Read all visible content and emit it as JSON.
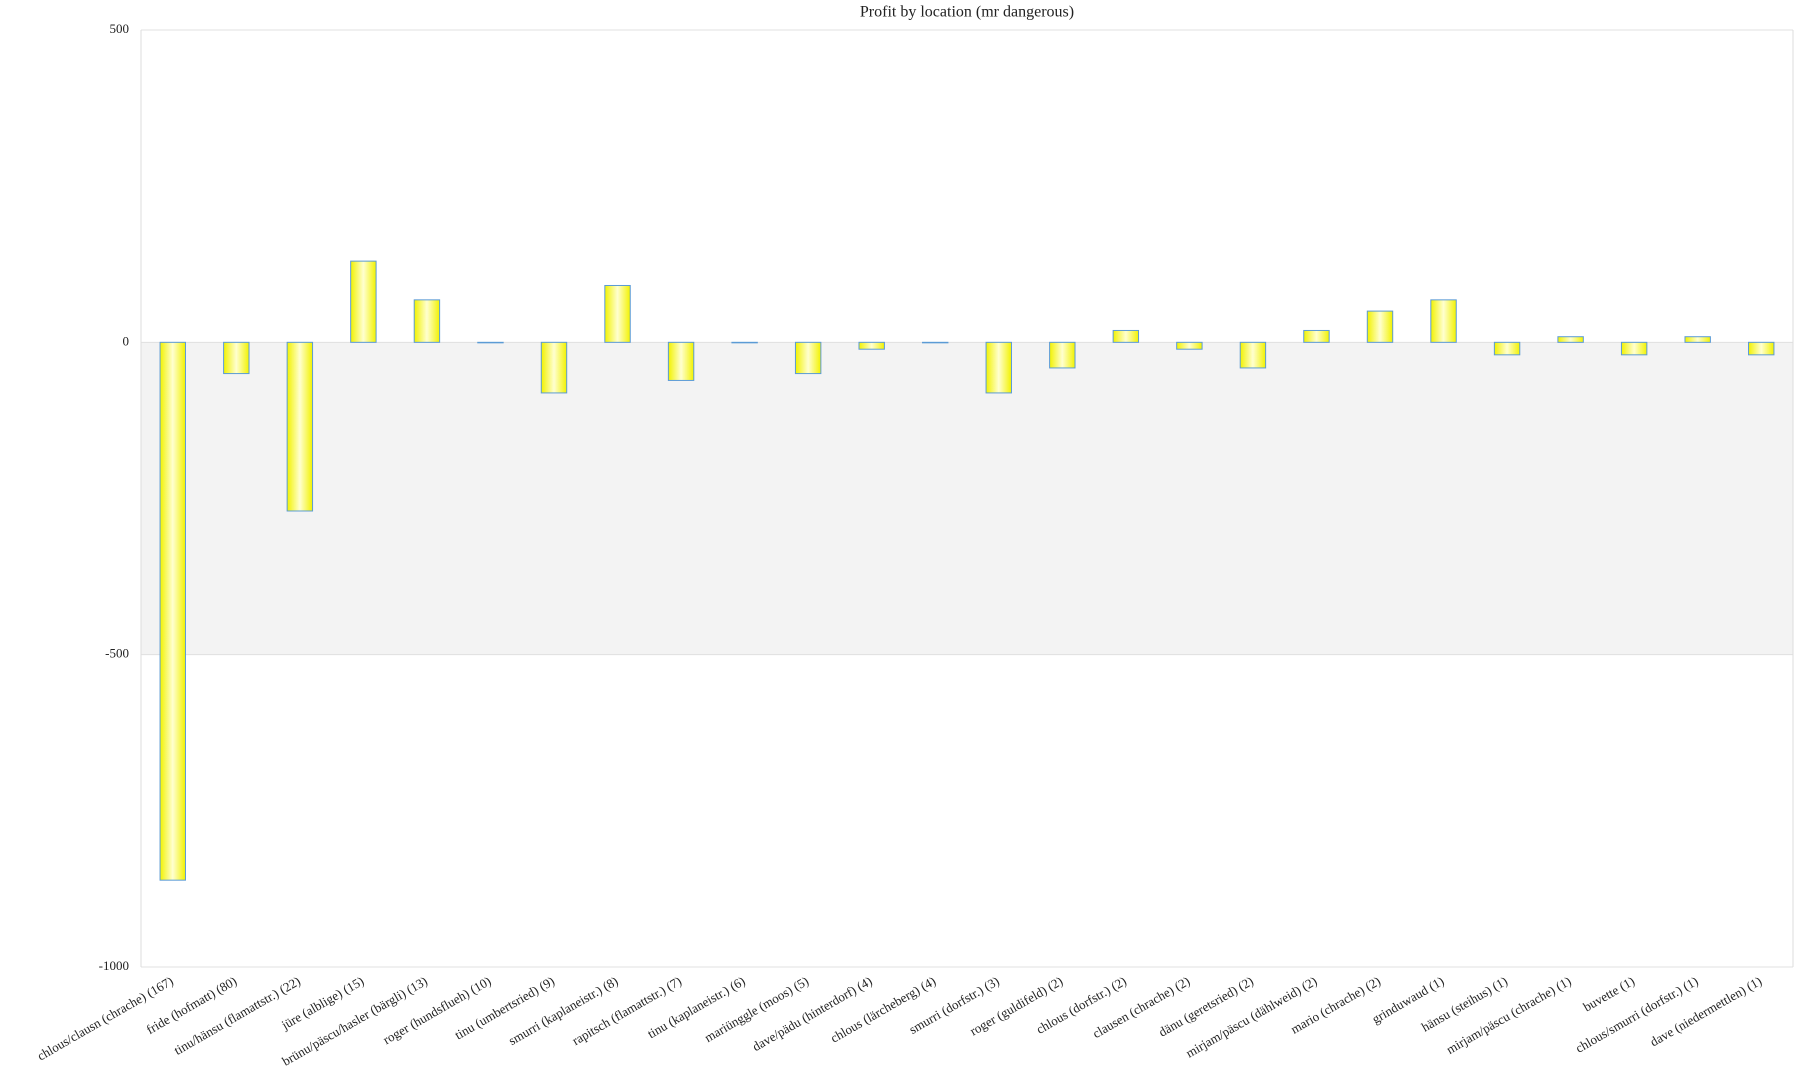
{
  "chart_data": {
    "type": "bar",
    "title": "Profit by location  (mr dangerous)",
    "categories": [
      "chlous/clausn (chrache) (167)",
      "fride (hofmatt) (80)",
      "tinu/hänsu (flamattstr.) (22)",
      "jüre (alblige) (15)",
      "brünu/päscu/hasler (bärgli) (13)",
      "roger (hundsflueh) (10)",
      "tinu (umbertsried) (9)",
      "smurri (kaplaneistr.) (8)",
      "rapitsch (flamattstr.) (7)",
      "tinu (kaplaneistr.) (6)",
      "mariünggle (moos) (5)",
      "dave/pädu (hinterdorf) (4)",
      "chlous (lärcheberg) (4)",
      "smurri (dorfstr.) (3)",
      "roger (guldifeld) (2)",
      "chlous (dorfstr.) (2)",
      "clausen (chrache) (2)",
      "dänu (geretsried) (2)",
      "mirjam/päscu (dählweid) (2)",
      "mario (chrache) (2)",
      "grinduwaud (1)",
      "hänsu (steihus) (1)",
      "mirjam/päscu (chrache) (1)",
      "buvette (1)",
      "chlous/smurri (dorfstr.) (1)",
      "dave (niedermettlen) (1)"
    ],
    "values": [
      -861,
      -50,
      -270,
      130,
      68,
      0,
      -81,
      91,
      -61,
      0,
      -50,
      -11,
      0,
      -81,
      -41,
      19,
      -11,
      -41,
      19,
      50,
      68,
      -20,
      9,
      -20,
      9,
      -20
    ],
    "color": "#f2f200",
    "edge_color": "#5b9bd5",
    "ylim": [
      -1000,
      500
    ],
    "yticks": [
      -1000,
      -500,
      0,
      500
    ],
    "grid": true
  }
}
